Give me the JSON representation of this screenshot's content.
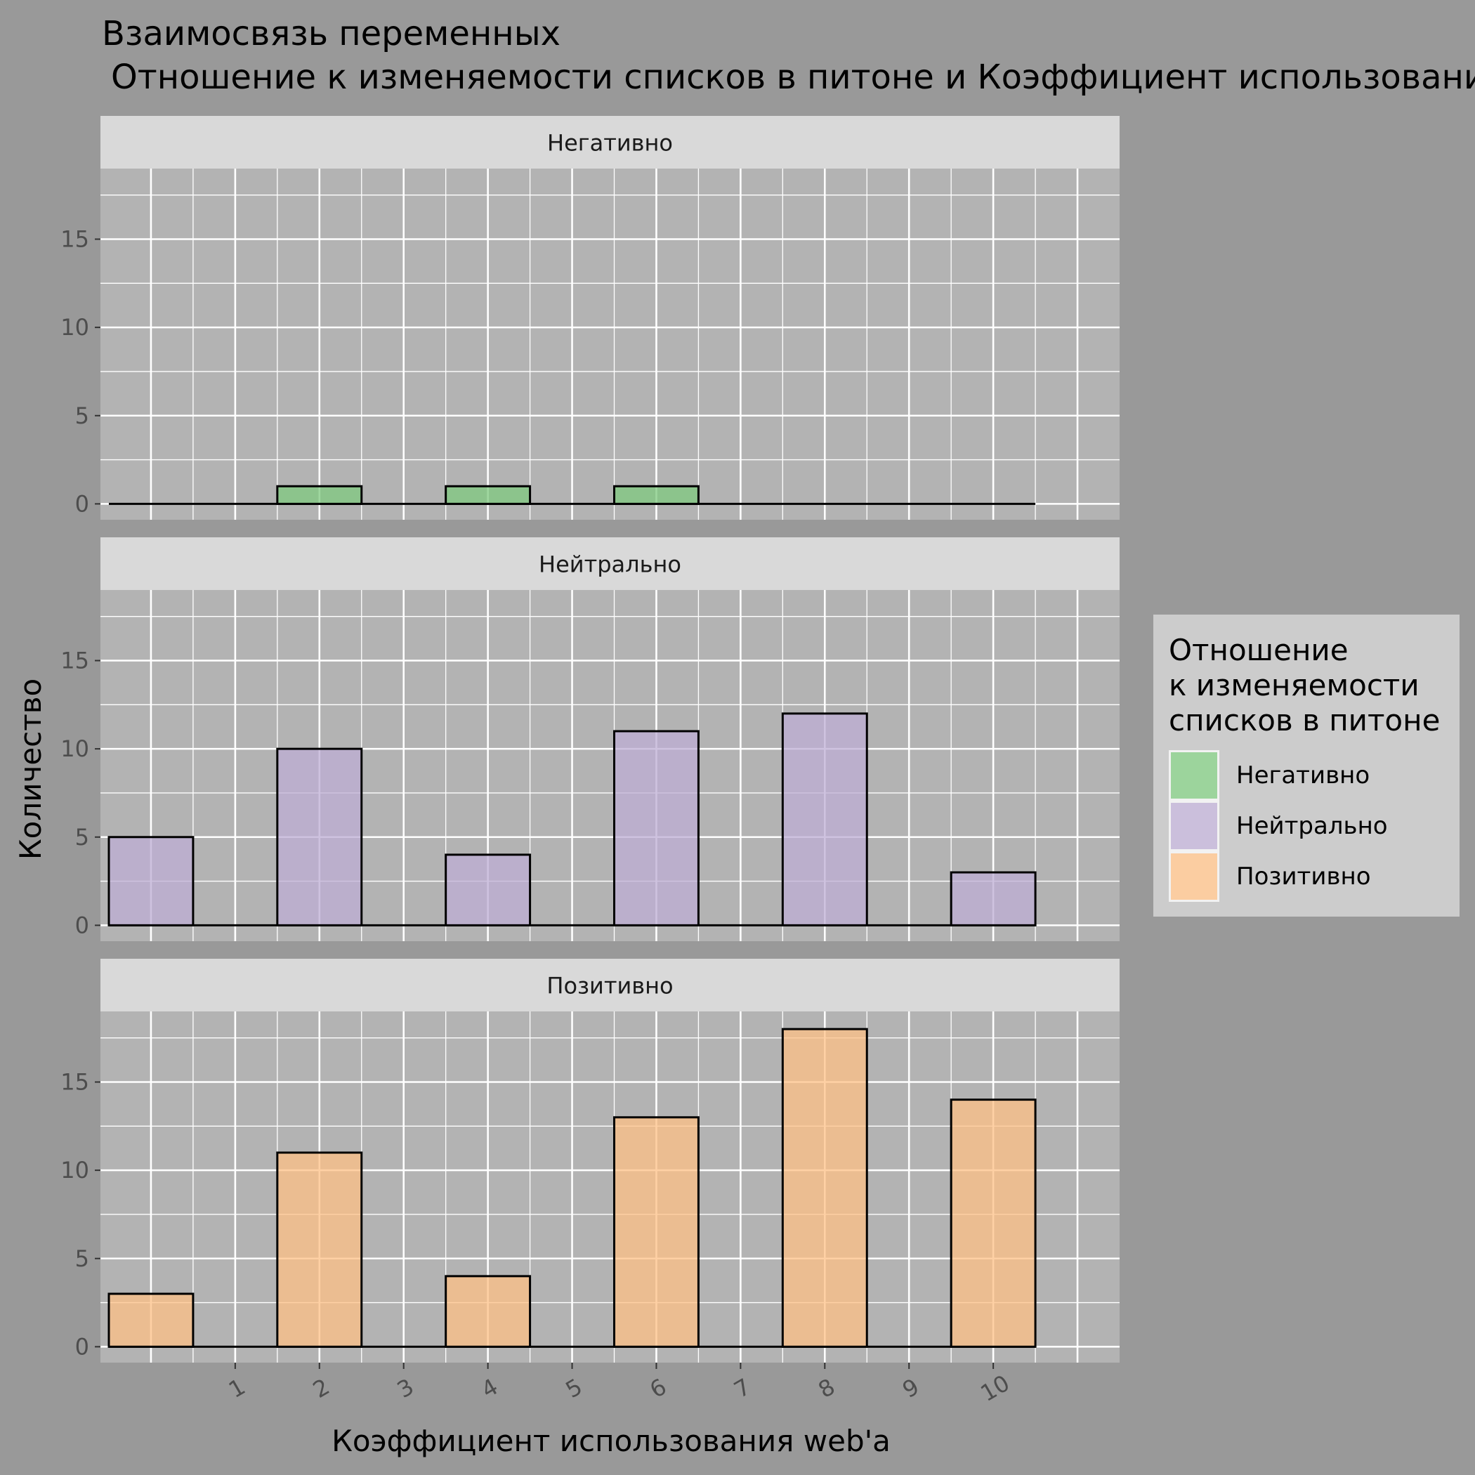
{
  "chart_data": {
    "type": "bar",
    "title": "Взаимосвязь переменных",
    "subtitle": "Отношение к изменяемости списков в питоне и Коэффициент использования web'a",
    "xlabel": "Коэффициент использования web'a",
    "ylabel": "Количество",
    "x_ticks": [
      "1",
      "2",
      "3",
      "4",
      "5",
      "6",
      "7",
      "8",
      "9",
      "10"
    ],
    "y_ticks": [
      0,
      5,
      10,
      15
    ],
    "ylim": [
      -0.9,
      19
    ],
    "xlim": [
      -0.6,
      11.5
    ],
    "bin_width": 1,
    "bin_centers": [
      0,
      2,
      4,
      6,
      8,
      10
    ],
    "grid": true,
    "legend": {
      "title": "Отношение\nк изменяемости\nсписков в питоне",
      "position": "right"
    },
    "series": [
      {
        "name": "Негативно",
        "color": "#7fc97f",
        "values": [
          0,
          1,
          1,
          1,
          0,
          0
        ]
      },
      {
        "name": "Нейтрально",
        "color": "#beaed4",
        "values": [
          5,
          10,
          4,
          11,
          12,
          3
        ]
      },
      {
        "name": "Позитивно",
        "color": "#fdc086",
        "values": [
          3,
          11,
          4,
          13,
          18,
          14
        ]
      }
    ]
  }
}
